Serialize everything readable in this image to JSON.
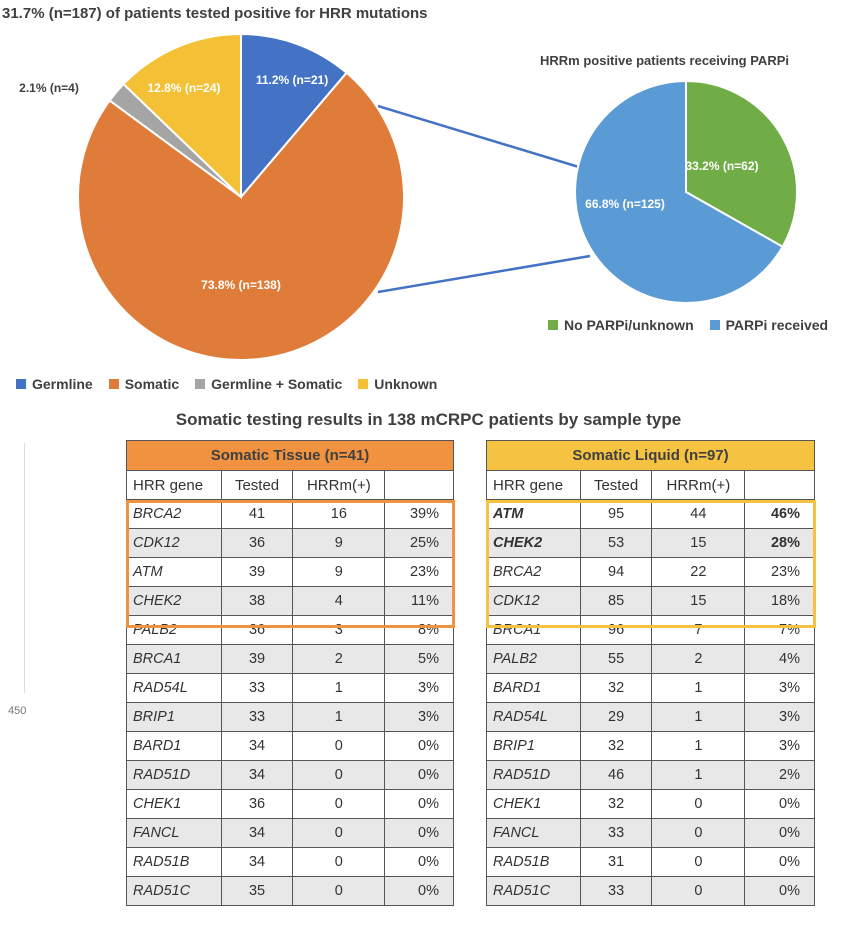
{
  "title": "31.7% (n=187) of patients tested positive for HRR mutations",
  "chart_data": [
    {
      "type": "pie",
      "title": "31.7% (n=187) of patients tested positive for HRR mutations",
      "slices": [
        {
          "name": "Germline",
          "value": 11.2,
          "label": "11.2% (n=21)",
          "color": "#4472C4"
        },
        {
          "name": "Somatic",
          "value": 73.8,
          "label": "73.8% (n=138)",
          "color": "#E07C3A"
        },
        {
          "name": "Germline + Somatic",
          "value": 2.1,
          "label": "2.1% (n=4)",
          "color": "#A5A5A5"
        },
        {
          "name": "Unknown",
          "value": 12.8,
          "label": "12.8% (n=24)",
          "color": "#F3C036"
        }
      ],
      "legend": "bottom"
    },
    {
      "type": "pie",
      "title": "HRRm positive patients receiving PARPi",
      "slices": [
        {
          "name": "No PARPi/unknown",
          "value": 33.2,
          "label": "33.2% (n=62)",
          "color": "#70AD47"
        },
        {
          "name": "PARPi received",
          "value": 66.8,
          "label": "66.8% (n=125)",
          "color": "#5B9BD5"
        }
      ],
      "legend": "bottom"
    },
    {
      "type": "table",
      "title": "Somatic testing results in 138 mCRPC patients by sample type",
      "tables": {
        "tissue": {
          "title": "Somatic Tissue (n=41)",
          "columns": [
            "HRR gene",
            "Tested",
            "HRRm(+)",
            ""
          ],
          "rows": [
            [
              "BRCA2",
              "41",
              "16",
              "39%"
            ],
            [
              "CDK12",
              "36",
              "9",
              "25%"
            ],
            [
              "ATM",
              "39",
              "9",
              "23%"
            ],
            [
              "CHEK2",
              "38",
              "4",
              "11%"
            ],
            [
              "PALB2",
              "36",
              "3",
              "8%"
            ],
            [
              "BRCA1",
              "39",
              "2",
              "5%"
            ],
            [
              "RAD54L",
              "33",
              "1",
              "3%"
            ],
            [
              "BRIP1",
              "33",
              "1",
              "3%"
            ],
            [
              "BARD1",
              "34",
              "0",
              "0%"
            ],
            [
              "RAD51D",
              "34",
              "0",
              "0%"
            ],
            [
              "CHEK1",
              "36",
              "0",
              "0%"
            ],
            [
              "FANCL",
              "34",
              "0",
              "0%"
            ],
            [
              "RAD51B",
              "34",
              "0",
              "0%"
            ],
            [
              "RAD51C",
              "35",
              "0",
              "0%"
            ]
          ]
        },
        "liquid": {
          "title": "Somatic Liquid (n=97)",
          "columns": [
            "HRR gene",
            "Tested",
            "HRRm(+)",
            ""
          ],
          "rows": [
            [
              "ATM",
              "95",
              "44",
              "46%"
            ],
            [
              "CHEK2",
              "53",
              "15",
              "28%"
            ],
            [
              "BRCA2",
              "94",
              "22",
              "23%"
            ],
            [
              "CDK12",
              "85",
              "15",
              "18%"
            ],
            [
              "BRCA1",
              "96",
              "7",
              "7%"
            ],
            [
              "PALB2",
              "55",
              "2",
              "4%"
            ],
            [
              "BARD1",
              "32",
              "1",
              "3%"
            ],
            [
              "RAD54L",
              "29",
              "1",
              "3%"
            ],
            [
              "BRIP1",
              "32",
              "1",
              "3%"
            ],
            [
              "RAD51D",
              "46",
              "1",
              "2%"
            ],
            [
              "CHEK1",
              "32",
              "0",
              "0%"
            ],
            [
              "FANCL",
              "33",
              "0",
              "0%"
            ],
            [
              "RAD51B",
              "31",
              "0",
              "0%"
            ],
            [
              "RAD51C",
              "33",
              "0",
              "0%"
            ]
          ]
        }
      }
    }
  ],
  "pie2_title": "HRRm positive patients receiving PARPi",
  "table_title": "Somatic testing results in 138 mCRPC patients by sample type",
  "side_tick": "450",
  "colors": {
    "tissue_header": "#F0923F",
    "liquid_header": "#F5C242",
    "row_shade": "#E8E8E8",
    "connector": "#4472C4"
  }
}
